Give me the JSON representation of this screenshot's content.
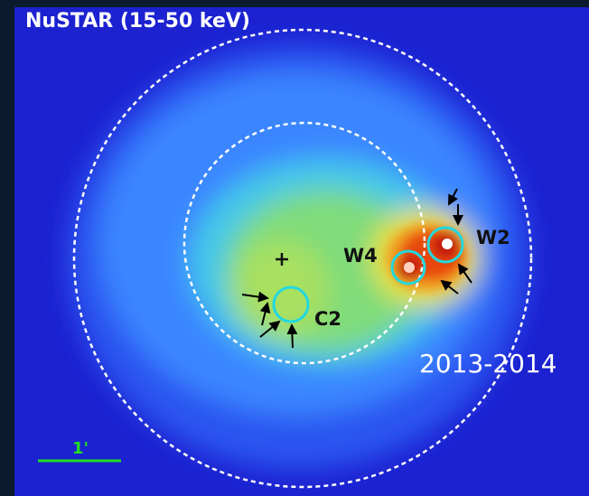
{
  "header": {
    "title": "NuSTAR (15-50 keV)"
  },
  "labels": {
    "w4": "W4",
    "w2": "W2",
    "c2": "C2",
    "epoch": "2013-2014",
    "scale": "1'"
  }
}
